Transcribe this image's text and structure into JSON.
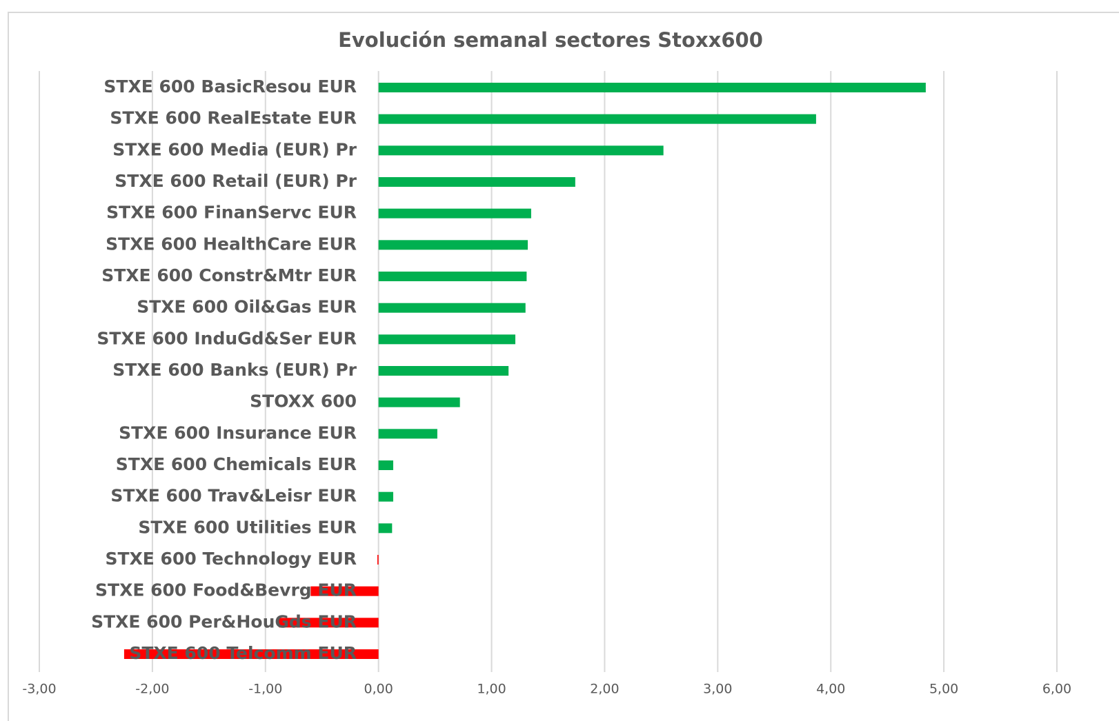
{
  "chart_data": {
    "type": "barh",
    "title": "Evolución semanal sectores Stoxx600",
    "categories": [
      "STXE 600 BasicResou EUR",
      "STXE 600 RealEstate EUR",
      "STXE 600 Media (EUR) Pr",
      "STXE 600 Retail (EUR) Pr",
      "STXE 600 FinanServc EUR",
      "STXE 600 HealthCare EUR",
      "STXE 600 Constr&Mtr EUR",
      "STXE 600 Oil&Gas EUR",
      "STXE 600 InduGd&Ser EUR",
      "STXE 600 Banks (EUR) Pr",
      "STOXX 600",
      "STXE 600 Insurance EUR",
      "STXE 600 Chemicals EUR",
      "STXE 600 Trav&Leisr EUR",
      "STXE 600 Utilities EUR",
      "STXE 600 Technology EUR",
      "STXE 600 Food&Bevrg EUR",
      "STXE 600 Per&HouGds EUR",
      "STXE 600 Telcomm EUR"
    ],
    "values": [
      4.84,
      3.87,
      2.52,
      1.74,
      1.35,
      1.32,
      1.31,
      1.3,
      1.21,
      1.15,
      0.72,
      0.52,
      0.13,
      0.13,
      0.12,
      -0.01,
      -0.6,
      -0.88,
      -2.25
    ],
    "positive_color": "#00b050",
    "negative_color": "#ff0000",
    "xlim": [
      -3,
      6
    ],
    "xticks": [
      {
        "value": -3,
        "label": "-3,00"
      },
      {
        "value": -2,
        "label": "-2,00"
      },
      {
        "value": -1,
        "label": "-1,00"
      },
      {
        "value": 0,
        "label": "0,00"
      },
      {
        "value": 1,
        "label": "1,00"
      },
      {
        "value": 2,
        "label": "2,00"
      },
      {
        "value": 3,
        "label": "3,00"
      },
      {
        "value": 4,
        "label": "4,00"
      },
      {
        "value": 5,
        "label": "5,00"
      },
      {
        "value": 6,
        "label": "6,00"
      }
    ],
    "grid": true
  }
}
